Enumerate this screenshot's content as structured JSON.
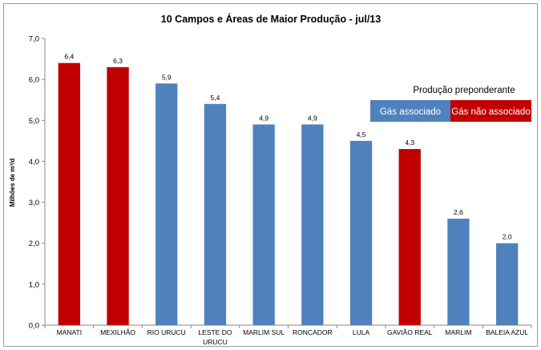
{
  "chart_data": {
    "type": "bar",
    "title": "10 Campos  e Áreas de Maior  Produção  - jul/13",
    "ylabel": "Milhões de m³/d",
    "xlabel": "",
    "ylim": [
      0,
      7
    ],
    "yticks": [
      "0,0",
      "1,0",
      "2,0",
      "3,0",
      "4,0",
      "5,0",
      "6,0",
      "7,0"
    ],
    "categories": [
      [
        "MANATI"
      ],
      [
        "MEXILHÃO"
      ],
      [
        "RIO URUCU"
      ],
      [
        "LESTE DO",
        "URUCU"
      ],
      [
        "MARLIM SUL"
      ],
      [
        "RONCADOR"
      ],
      [
        "LULA"
      ],
      [
        "GAVIÃO REAL"
      ],
      [
        "MARLIM"
      ],
      [
        "BALEIA AZUL"
      ]
    ],
    "values": [
      6.4,
      6.3,
      5.9,
      5.4,
      4.9,
      4.9,
      4.5,
      4.3,
      2.6,
      2.0
    ],
    "value_labels": [
      "6,4",
      "6,3",
      "5,9",
      "5,4",
      "4,9",
      "4,9",
      "4,5",
      "4,3",
      "2,6",
      "2,0"
    ],
    "bar_types": [
      "nao",
      "nao",
      "assoc",
      "assoc",
      "assoc",
      "assoc",
      "assoc",
      "nao",
      "assoc",
      "assoc"
    ],
    "colors": {
      "assoc": "#4f81bd",
      "nao": "#c00000"
    },
    "legend": {
      "title": "Produção preponderante",
      "items": [
        {
          "key": "assoc",
          "label": "Gás associado"
        },
        {
          "key": "nao",
          "label": "Gás não associado"
        }
      ],
      "placement": "right"
    },
    "grid": false
  }
}
